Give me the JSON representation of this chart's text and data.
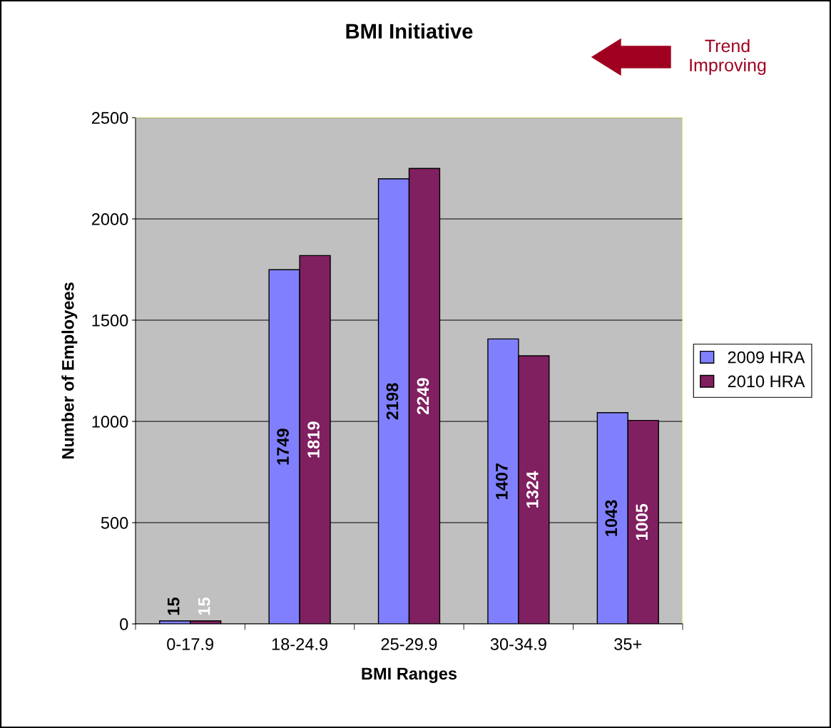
{
  "chart_data": {
    "type": "bar",
    "title": "BMI Initiative",
    "xlabel": "BMI Ranges",
    "ylabel": "Number of Employees",
    "categories": [
      "0-17.9",
      "18-24.9",
      "25-29.9",
      "30-34.9",
      "35+"
    ],
    "series": [
      {
        "name": "2009 HRA",
        "color": "#8080ff",
        "values": [
          15,
          1749,
          2198,
          1407,
          1043
        ]
      },
      {
        "name": "2010 HRA",
        "color": "#802060",
        "values": [
          15,
          1819,
          2249,
          1324,
          1005
        ]
      }
    ],
    "ylim": [
      0,
      2500
    ],
    "yticks": [
      0,
      500,
      1000,
      1500,
      2000,
      2500
    ],
    "grid": "y",
    "legend": "right",
    "data_labels": true,
    "annotations": [
      "Trend Improving"
    ]
  }
}
